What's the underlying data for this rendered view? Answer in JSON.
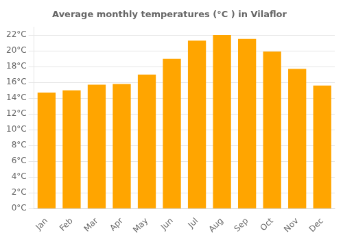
{
  "chart_data": {
    "type": "bar",
    "title": "Average monthly temperatures (°C ) in Vilaflor",
    "categories": [
      "Jan",
      "Feb",
      "Mar",
      "Apr",
      "May",
      "Jun",
      "Jul",
      "Aug",
      "Sep",
      "Oct",
      "Nov",
      "Dec"
    ],
    "values": [
      14.7,
      15.0,
      15.7,
      15.8,
      17.0,
      19.0,
      21.3,
      22.0,
      21.5,
      19.9,
      17.7,
      15.6
    ],
    "color": "#FFA500",
    "ylim": [
      0,
      23
    ],
    "yticks": [
      {
        "value": 0,
        "label": "0°C"
      },
      {
        "value": 2,
        "label": "2°C"
      },
      {
        "value": 4,
        "label": "4°C"
      },
      {
        "value": 6,
        "label": "6°C"
      },
      {
        "value": 8,
        "label": "8°C"
      },
      {
        "value": 10,
        "label": "10°C"
      },
      {
        "value": 12,
        "label": "12°C"
      },
      {
        "value": 14,
        "label": "14°C"
      },
      {
        "value": 16,
        "label": "16°C"
      },
      {
        "value": 18,
        "label": "18°C"
      },
      {
        "value": 20,
        "label": "20°C"
      },
      {
        "value": 22,
        "label": "22°C"
      }
    ],
    "grid": true
  }
}
